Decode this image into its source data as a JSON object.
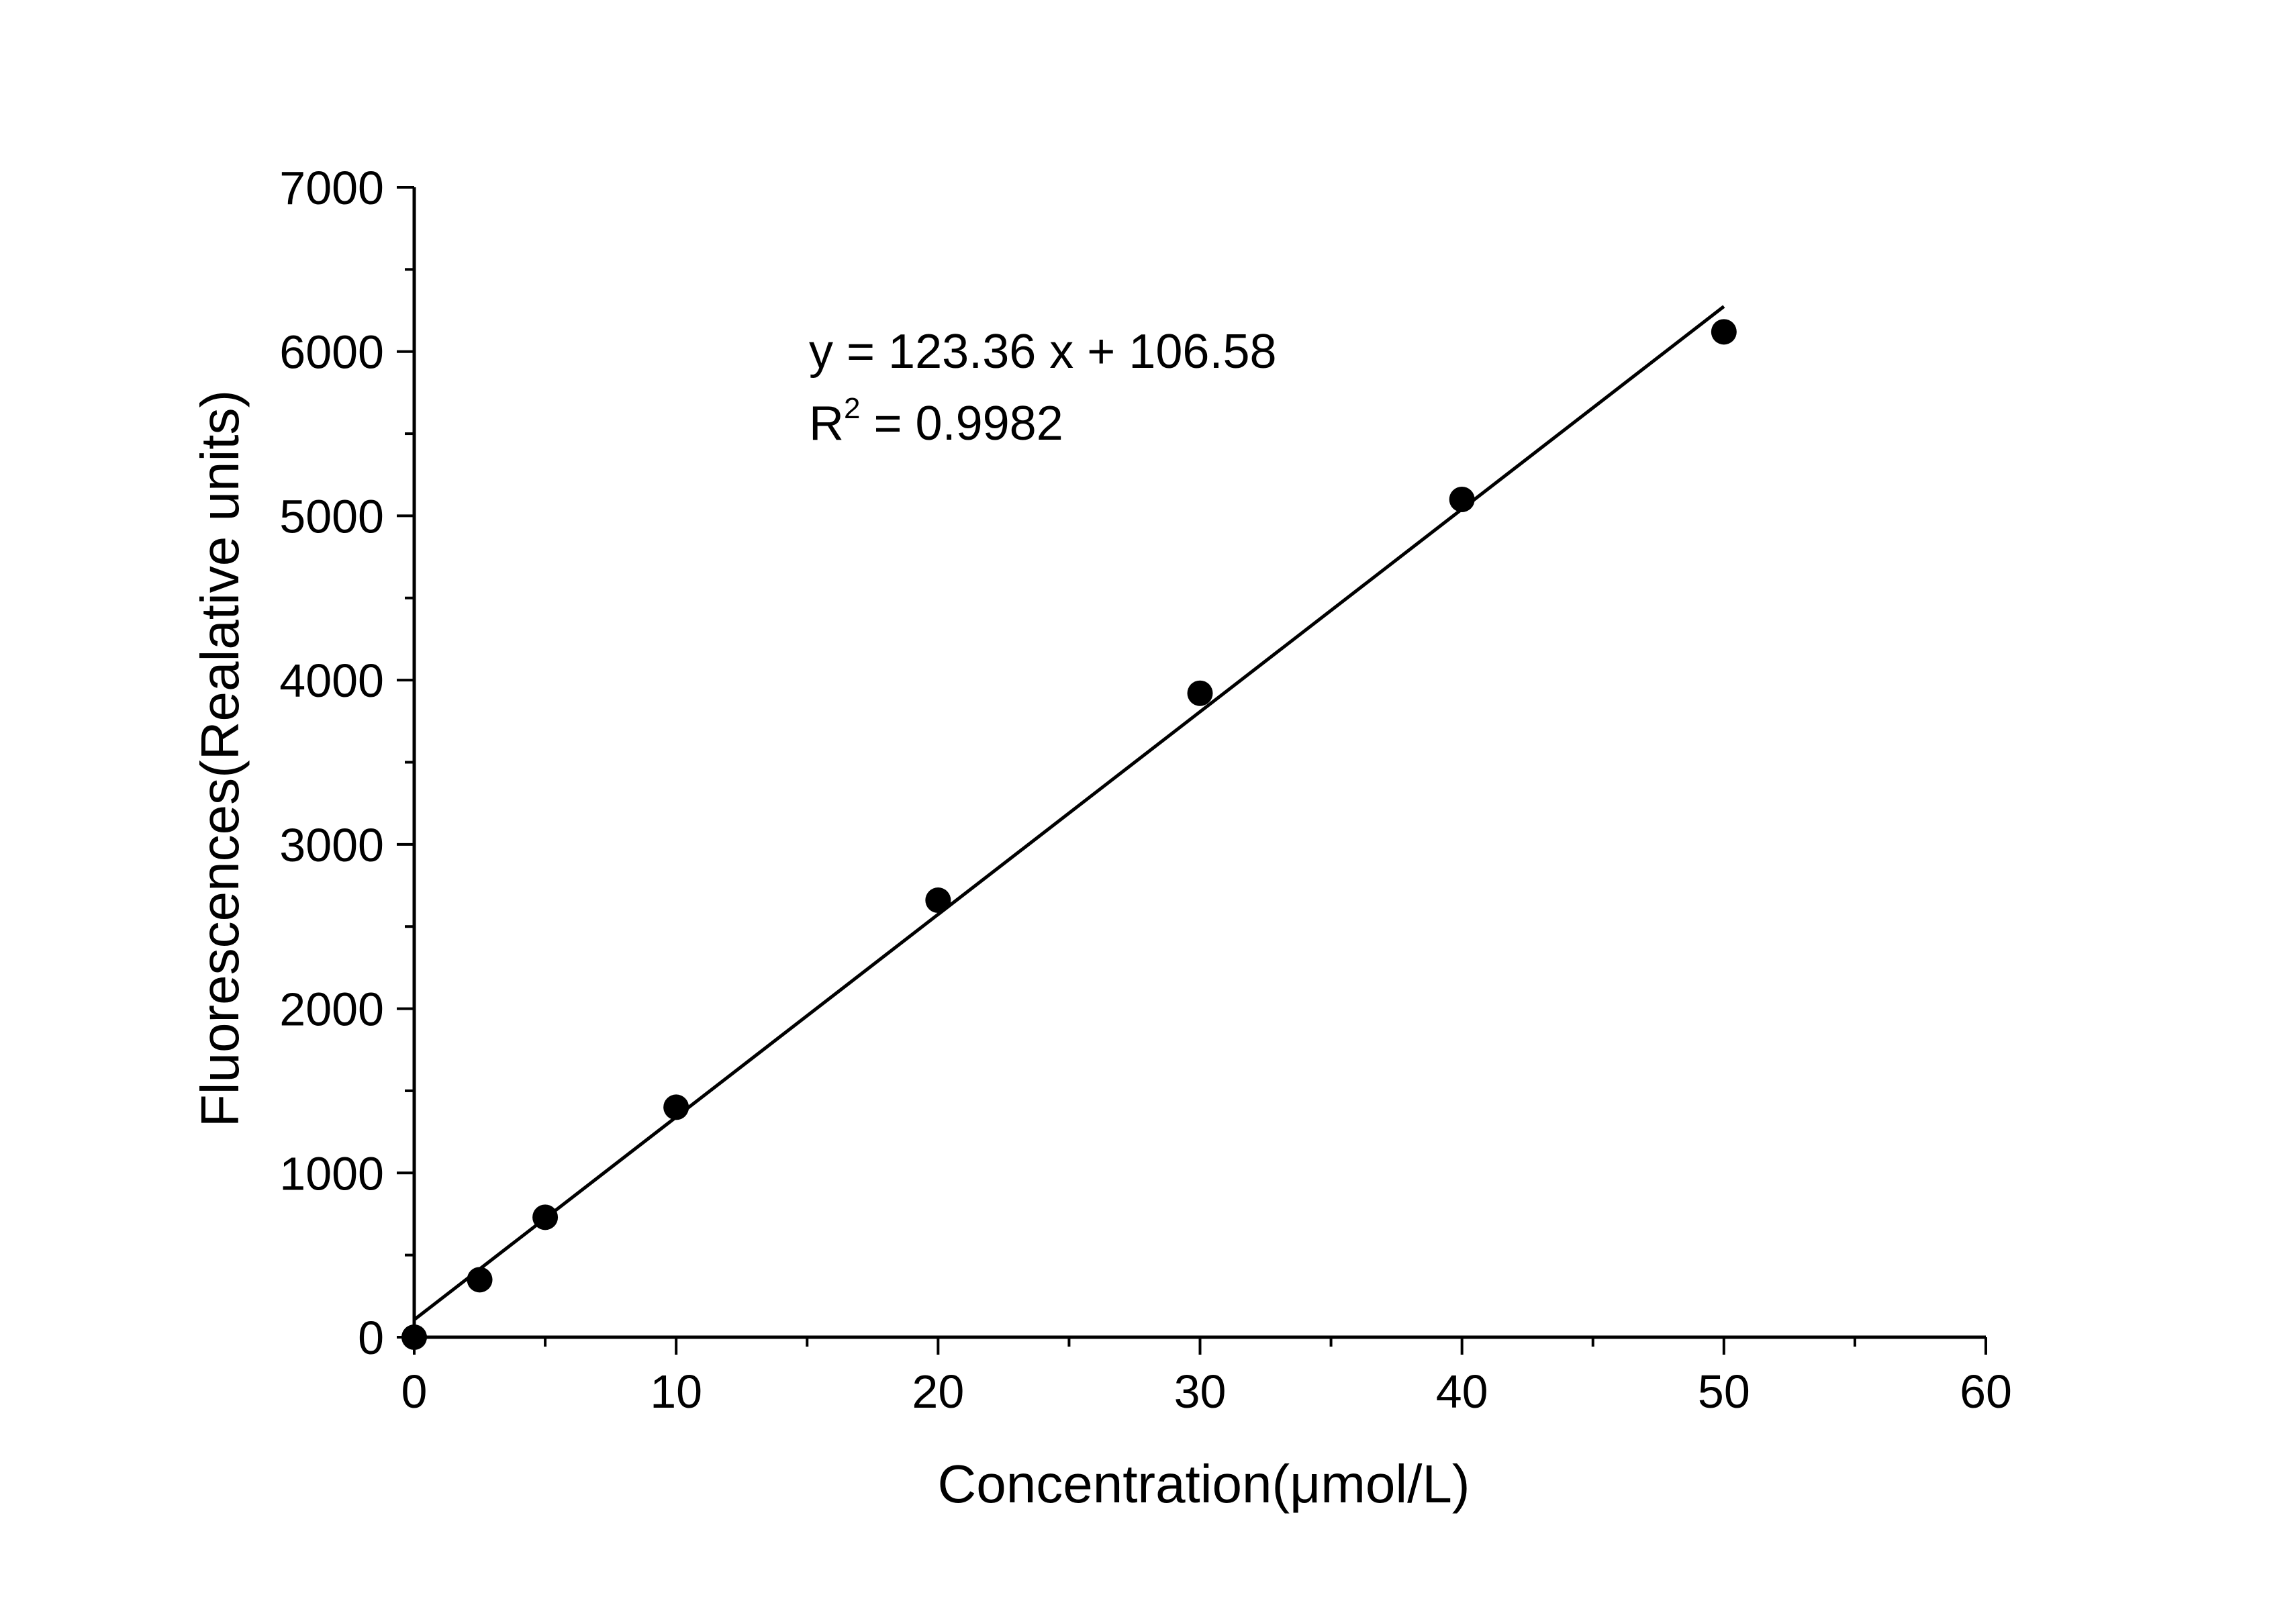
{
  "chart_data": {
    "type": "scatter",
    "xlabel": "Concentration(μmol/L)",
    "ylabel": "Fluorescences(Realative units)",
    "xlim": [
      0,
      60
    ],
    "ylim": [
      0,
      7000
    ],
    "x_ticks": [
      "0",
      "10",
      "20",
      "30",
      "40",
      "50",
      "60"
    ],
    "y_ticks": [
      "0",
      "1000",
      "2000",
      "3000",
      "4000",
      "5000",
      "6000",
      "7000"
    ],
    "grid": false,
    "series": [
      {
        "type": "scatter",
        "x": [
          0,
          2.5,
          5,
          10,
          20,
          30,
          40,
          50
        ],
        "y": [
          0,
          350,
          730,
          1400,
          2660,
          3920,
          5100,
          6120
        ]
      }
    ],
    "fit_line": {
      "slope": 123.36,
      "intercept": 106.58,
      "x_range": [
        0,
        50
      ]
    },
    "annotations": {
      "equation": "y = 123.36 x + 106.58",
      "r2_label": "R",
      "r2_sup": "2",
      "r2_value": " = 0.9982"
    },
    "colors": {
      "marker": "#000000",
      "line": "#000000",
      "axis": "#000000"
    }
  }
}
